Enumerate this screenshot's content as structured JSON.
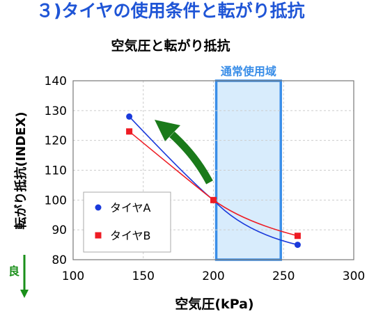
{
  "slide": {
    "title": "３)タイヤの使用条件と転がり抵抗"
  },
  "chart_data": {
    "type": "scatter",
    "title": "空気圧と転がり抵抗",
    "xlabel": "空気圧(kPa)",
    "ylabel": "転がり抵抗(INDEX)",
    "xlim": [
      100,
      300
    ],
    "ylim": [
      80,
      140
    ],
    "xticks": [
      100,
      150,
      200,
      250,
      300
    ],
    "yticks": [
      80,
      90,
      100,
      110,
      120,
      130,
      140
    ],
    "grid": true,
    "legend_position": "bottom-left",
    "series": [
      {
        "name": "タイヤA",
        "marker": "circle",
        "color": "#1a3adb",
        "x": [
          140,
          200,
          260
        ],
        "y": [
          128,
          100,
          85
        ]
      },
      {
        "name": "タイヤB",
        "marker": "square",
        "color": "#ee1c24",
        "x": [
          140,
          200,
          260
        ],
        "y": [
          123,
          100,
          88
        ]
      }
    ],
    "highlight_region": {
      "label": "通常使用域",
      "x_start": 202,
      "x_end": 248,
      "color": "#3a8ee8"
    },
    "annotations": {
      "better_label": "良",
      "better_color": "#1a8f1a",
      "arrow_color": "#1a7a1a"
    }
  }
}
